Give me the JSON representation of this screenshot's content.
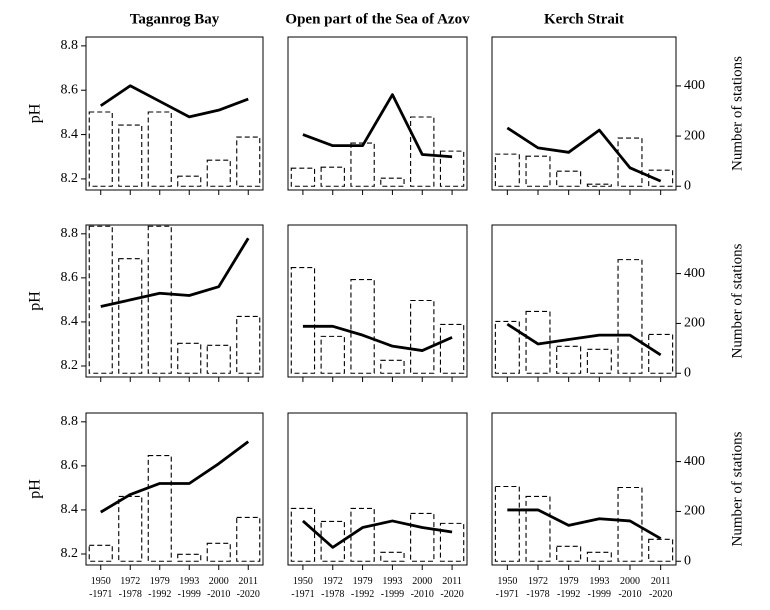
{
  "chart_data": [
    {
      "type": "combo",
      "title": "Taganrog Bay",
      "ylabel": "pH",
      "ylim": [
        8.15,
        8.84
      ],
      "yticks": [
        8.2,
        8.4,
        8.6,
        8.8
      ],
      "y2lim": [
        -15,
        595
      ],
      "values": [
        8.53,
        8.62,
        8.55,
        8.48,
        8.51,
        8.56
      ],
      "bar_values": [
        296,
        244,
        296,
        40,
        104,
        196
      ],
      "line_color": "#000000",
      "bar_color": "#000000"
    },
    {
      "type": "combo",
      "title": "Open part of the Sea of Azov",
      "ylim": [
        8.15,
        8.84
      ],
      "y2lim": [
        -15,
        595
      ],
      "values": [
        8.4,
        8.35,
        8.35,
        8.58,
        8.31,
        8.3
      ],
      "bar_values": [
        72,
        76,
        172,
        32,
        276,
        140
      ],
      "line_color": "#000000",
      "bar_color": "#000000"
    },
    {
      "type": "combo",
      "title": "Kerch Strait",
      "y2label": "Number of stations",
      "ylim": [
        8.15,
        8.84
      ],
      "y2lim": [
        -15,
        595
      ],
      "y2ticks": [
        0,
        200,
        400
      ],
      "values": [
        8.43,
        8.34,
        8.32,
        8.42,
        8.25,
        8.19
      ],
      "bar_values": [
        128,
        120,
        60,
        8,
        192,
        64
      ],
      "line_color": "#000000",
      "bar_color": "#000000"
    },
    {
      "type": "combo",
      "ylabel": "pH",
      "ylim": [
        8.15,
        8.84
      ],
      "yticks": [
        8.2,
        8.4,
        8.6,
        8.8
      ],
      "y2lim": [
        -15,
        595
      ],
      "values": [
        8.47,
        8.5,
        8.53,
        8.52,
        8.56,
        8.78
      ],
      "bar_values": [
        590,
        460,
        590,
        120,
        112,
        228
      ],
      "line_color": "#000000",
      "bar_color": "#000000"
    },
    {
      "type": "combo",
      "ylim": [
        8.15,
        8.84
      ],
      "y2lim": [
        -15,
        595
      ],
      "values": [
        8.38,
        8.38,
        8.34,
        8.29,
        8.27,
        8.33
      ],
      "bar_values": [
        424,
        148,
        376,
        52,
        292,
        196
      ],
      "line_color": "#000000",
      "bar_color": "#000000"
    },
    {
      "type": "combo",
      "y2label": "Number of stations",
      "ylim": [
        8.15,
        8.84
      ],
      "y2lim": [
        -15,
        595
      ],
      "y2ticks": [
        0,
        200,
        400
      ],
      "values": [
        8.39,
        8.3,
        8.32,
        8.34,
        8.34,
        8.25
      ],
      "bar_values": [
        208,
        248,
        108,
        96,
        456,
        156
      ],
      "line_color": "#000000",
      "bar_color": "#000000"
    },
    {
      "type": "combo",
      "ylabel": "pH",
      "ylim": [
        8.15,
        8.84
      ],
      "yticks": [
        8.2,
        8.4,
        8.6,
        8.8
      ],
      "y2lim": [
        -15,
        595
      ],
      "categories": [
        "1950\n-1971",
        "1972\n-1978",
        "1979\n-1992",
        "1993\n-1999",
        "2000\n-2010",
        "2011\n-2020"
      ],
      "values": [
        8.39,
        8.47,
        8.52,
        8.52,
        8.61,
        8.71
      ],
      "bar_values": [
        64,
        260,
        424,
        28,
        72,
        176
      ],
      "line_color": "#000000",
      "bar_color": "#000000"
    },
    {
      "type": "combo",
      "ylim": [
        8.15,
        8.84
      ],
      "y2lim": [
        -15,
        595
      ],
      "categories": [
        "1950\n-1971",
        "1972\n-1978",
        "1979\n-1992",
        "1993\n-1999",
        "2000\n-2010",
        "2011\n-2020"
      ],
      "values": [
        8.35,
        8.23,
        8.32,
        8.35,
        8.32,
        8.3
      ],
      "bar_values": [
        212,
        160,
        212,
        36,
        192,
        152
      ],
      "line_color": "#000000",
      "bar_color": "#000000"
    },
    {
      "type": "combo",
      "y2label": "Number of stations",
      "ylim": [
        8.15,
        8.84
      ],
      "y2lim": [
        -15,
        595
      ],
      "y2ticks": [
        0,
        200,
        400
      ],
      "categories": [
        "1950\n-1971",
        "1972\n-1978",
        "1979\n-1992",
        "1993\n-1999",
        "2000\n-2010",
        "2011\n-2020"
      ],
      "values": [
        8.4,
        8.4,
        8.33,
        8.36,
        8.35,
        8.27
      ],
      "bar_values": [
        300,
        260,
        60,
        36,
        296,
        88
      ],
      "line_color": "#000000",
      "bar_color": "#000000"
    }
  ]
}
